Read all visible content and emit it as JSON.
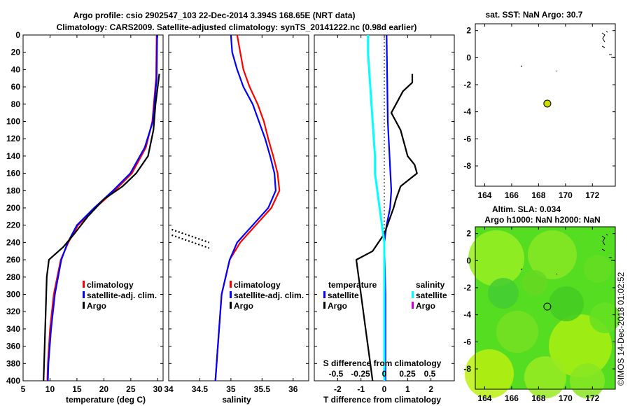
{
  "title": {
    "line1": "Argo profile: csio 2902547_103 22-Dec-2014 3.394S 168.65E (NRT data)",
    "line2": "Climatology: CARS2009. Satellite-adjusted climatology: synTS_20141222.nc (0.98d earlier)"
  },
  "side_stamp": "©IMOS 14-Dec-2018 01:02:52",
  "colors": {
    "clim": "#ff0000",
    "sat": "#0000ff",
    "argo": "#000000",
    "sat_s": "#00ffff",
    "argo_s": "#cc00cc"
  },
  "chart_data": [
    {
      "type": "line",
      "id": "temperature",
      "xlabel": "temperature (deg C)",
      "xlim": [
        5,
        31
      ],
      "ylim": [
        0,
        400
      ],
      "xticks": [
        5,
        10,
        15,
        20,
        25,
        30
      ],
      "yticks": [
        0,
        20,
        40,
        60,
        80,
        100,
        120,
        140,
        160,
        180,
        200,
        220,
        240,
        260,
        280,
        300,
        320,
        340,
        360,
        380,
        400
      ],
      "legend": [
        "climatology",
        "satellite-adj. clim.",
        "Argo"
      ],
      "series": [
        {
          "name": "climatology",
          "depth": [
            0,
            50,
            100,
            130,
            160,
            180,
            200,
            220,
            240,
            260,
            300,
            340,
            380,
            400
          ],
          "values": [
            29.8,
            29.7,
            29.0,
            27.8,
            25.2,
            22.0,
            18.4,
            15.2,
            13.4,
            12.0,
            10.7,
            10.0,
            9.6,
            9.5
          ]
        },
        {
          "name": "satellite-adj. clim.",
          "depth": [
            0,
            50,
            100,
            130,
            160,
            180,
            200,
            220,
            240,
            260,
            300,
            340,
            380,
            400
          ],
          "values": [
            29.9,
            29.8,
            29.1,
            27.6,
            24.9,
            21.7,
            18.2,
            15.0,
            13.3,
            12.1,
            10.9,
            10.2,
            9.7,
            9.6
          ]
        },
        {
          "name": "Argo",
          "depth": [
            45,
            55,
            80,
            110,
            140,
            160,
            175,
            190,
            210,
            230,
            245,
            260,
            280,
            320,
            360,
            400
          ],
          "values": [
            30.3,
            30.1,
            29.6,
            29.2,
            28.2,
            26.0,
            23.5,
            20.0,
            17.0,
            14.5,
            12.5,
            9.8,
            9.4,
            9.2,
            9.0,
            8.8
          ]
        }
      ]
    },
    {
      "type": "line",
      "id": "salinity",
      "xlabel": "salinity",
      "xlim": [
        34,
        36.25
      ],
      "ylim": [
        0,
        400
      ],
      "xticks": [
        34,
        34.5,
        35,
        35.5,
        36
      ],
      "legend": [
        "climatology",
        "satellite-adj. clim.",
        "Argo"
      ],
      "series": [
        {
          "name": "climatology",
          "depth": [
            0,
            20,
            40,
            60,
            80,
            100,
            120,
            140,
            160,
            180,
            200,
            220,
            240,
            260,
            300,
            350,
            400
          ],
          "values": [
            35.1,
            35.15,
            35.2,
            35.3,
            35.43,
            35.53,
            35.6,
            35.68,
            35.75,
            35.78,
            35.65,
            35.4,
            35.15,
            34.98,
            34.85,
            34.8,
            34.75
          ]
        },
        {
          "name": "satellite-adj. clim.",
          "depth": [
            0,
            20,
            40,
            60,
            80,
            100,
            120,
            140,
            160,
            180,
            200,
            220,
            240,
            260,
            300,
            350,
            400
          ],
          "values": [
            35.0,
            35.02,
            35.1,
            35.2,
            35.35,
            35.45,
            35.55,
            35.63,
            35.7,
            35.72,
            35.6,
            35.35,
            35.1,
            34.98,
            34.85,
            34.8,
            34.75
          ]
        },
        {
          "name": "Argo",
          "depth": [
            225,
            240
          ],
          "values": [
            34.05,
            34.65
          ]
        }
      ]
    },
    {
      "type": "line",
      "id": "difference",
      "xlabel": "T difference from climatology",
      "top_label": "S difference from climatology",
      "xlim": [
        -3,
        3
      ],
      "ylim": [
        0,
        400
      ],
      "xticks": [
        -2,
        -1,
        0,
        1,
        2
      ],
      "top_ticks": [
        "-0.5",
        "-0.25",
        "0",
        "0.25",
        "0.5"
      ],
      "legend_temperature_title": "temperature",
      "legend_salinity_title": "salinity",
      "legend_temperature": [
        "satellite",
        "Argo"
      ],
      "legend_salinity": [
        "satellite",
        "Argo"
      ],
      "series": [
        {
          "name": "T satellite",
          "depth": [
            0,
            100,
            180,
            200,
            220,
            240,
            300,
            400
          ],
          "values": [
            0.1,
            0.15,
            0.3,
            0.25,
            0.1,
            0.0,
            0.05,
            0.05
          ]
        },
        {
          "name": "T Argo",
          "depth": [
            45,
            55,
            65,
            80,
            90,
            110,
            130,
            140,
            150,
            160,
            175,
            190,
            200,
            230,
            250,
            260,
            300,
            340,
            380,
            400
          ],
          "values": [
            1.2,
            1.2,
            0.8,
            0.5,
            0.3,
            0.7,
            0.9,
            1.0,
            1.3,
            1.4,
            0.7,
            0.5,
            0.4,
            0.0,
            -0.5,
            -1.2,
            -1.0,
            -0.8,
            -0.6,
            -0.5
          ]
        },
        {
          "name": "S satellite",
          "depth": [
            0,
            20,
            40,
            60,
            80,
            100,
            120,
            140,
            160,
            180,
            200,
            240,
            280,
            300,
            350,
            400
          ],
          "values": [
            -0.7,
            -0.7,
            -0.65,
            -0.6,
            -0.55,
            -0.5,
            -0.45,
            -0.4,
            -0.4,
            -0.3,
            -0.2,
            0.0,
            0.0,
            0.0,
            0.0,
            0.0
          ]
        }
      ]
    },
    {
      "type": "scatter",
      "id": "sst_map",
      "title": "sat. SST: NaN Argo: 30.7",
      "xlim": [
        163.3,
        173.7
      ],
      "ylim": [
        -9.5,
        2.5
      ],
      "xticks": [
        164,
        166,
        168,
        170,
        172
      ],
      "yticks": [
        2,
        0,
        -2,
        -4,
        -6,
        -8
      ],
      "argo_position": {
        "lon": 168.65,
        "lat": -3.394
      }
    },
    {
      "type": "heatmap",
      "id": "sla_map",
      "title_line1": "Altim. SLA: 0.034",
      "title_line2": "Argo h1000: NaN h2000: NaN",
      "xlim": [
        163.3,
        173.7
      ],
      "ylim": [
        -9.5,
        2.5
      ],
      "xticks": [
        164,
        166,
        168,
        170,
        172
      ],
      "yticks": [
        2,
        0,
        -2,
        -4,
        -6,
        -8
      ],
      "argo_position": {
        "lon": 168.65,
        "lat": -3.394
      }
    }
  ]
}
